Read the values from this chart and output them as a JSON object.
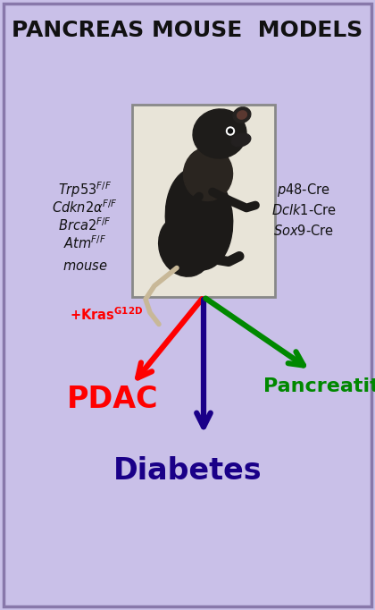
{
  "title": "PANCREAS MOUSE  MODELS",
  "bg_color": "#c9c0e8",
  "border_color": "#8878aa",
  "pdac_color": "#ff0000",
  "diabetes_color": "#1a0088",
  "pancreatitis_color": "#008800",
  "kras_color": "#ff0000",
  "title_color": "#111111",
  "label_color": "#111111",
  "mouse_box_bg": "#e8e4d8",
  "mouse_box_border": "#888888",
  "left_lines": [
    "$\\it{Trp53}$$^{F/F}$",
    "$\\it{Cdkn2\\alpha}$$^{F/F}$",
    "$\\it{Brca2}$$^{F/F}$",
    "$\\it{Atm}$$^{F/F}$",
    "$\\it{mouse}$"
  ],
  "right_lines": [
    "$\\it{p48}$-Cre",
    "$\\it{Dclk1}$-Cre",
    "$\\it{Sox9}$-Cre"
  ],
  "kras_text": "$\\mathbf{+Kras^{G12D}}$",
  "pdac_text": "PDAC",
  "diabetes_text": "Diabetes",
  "pancreatitis_text": "Pancreatitis"
}
